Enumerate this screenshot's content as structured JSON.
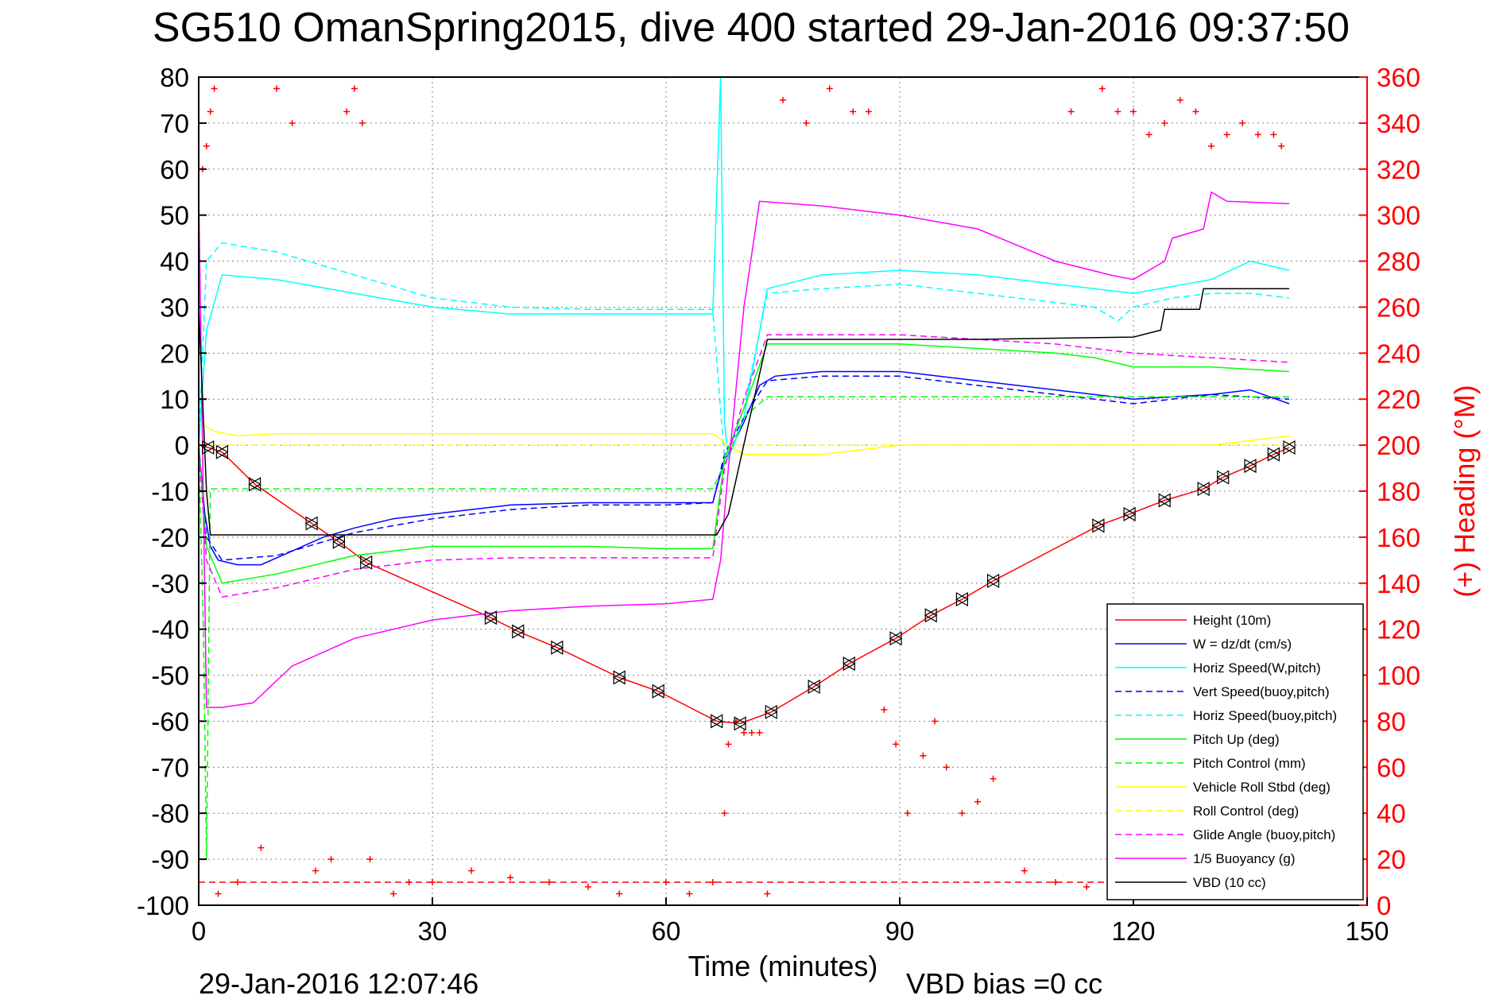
{
  "chart_data": {
    "type": "line",
    "title": "SG510 OmanSpring2015, dive 400 started 29-Jan-2016 09:37:50",
    "xlabel": "Time (minutes)",
    "ylabel_right": "(+) Heading (°M)",
    "xlim": [
      0,
      150
    ],
    "ylim_left": [
      -100,
      80
    ],
    "ylim_right": [
      0,
      360
    ],
    "xticks": [
      "0",
      "30",
      "60",
      "90",
      "120",
      "150"
    ],
    "yticks_left": [
      "80",
      "70",
      "60",
      "50",
      "40",
      "30",
      "20",
      "10",
      "0",
      "-10",
      "-20",
      "-30",
      "-40",
      "-50",
      "-60",
      "-70",
      "-80",
      "-90",
      "-100"
    ],
    "yticks_right": [
      "360",
      "340",
      "320",
      "300",
      "280",
      "260",
      "240",
      "220",
      "200",
      "180",
      "160",
      "140",
      "120",
      "100",
      "80",
      "60",
      "40",
      "20",
      "0"
    ],
    "grid": true,
    "legend_position": "bottom-right",
    "footer_left": "29-Jan-2016 12:07:46",
    "footer_right": "VBD bias =0 cc",
    "colors": {
      "height": "#ff0000",
      "w": "#0000ff",
      "horiz": "#00ffff",
      "pitch": "#00ff00",
      "roll": "#ffff00",
      "glide": "#ff00ff",
      "buoy": "#ff00ff",
      "vbd": "#000000",
      "heading": "#ff0000"
    },
    "series": [
      {
        "name": "Height (10m)",
        "color": "#ff0000",
        "style": "solid",
        "x": [
          0,
          1.2,
          3,
          7.2,
          14.5,
          18,
          21.5,
          37.5,
          41,
          46,
          54,
          59,
          66.5,
          69.5,
          73.5,
          79,
          83.5,
          89.5,
          94,
          98,
          102,
          115.5,
          119.5,
          124,
          129,
          131.5,
          135,
          138,
          140
        ],
        "y": [
          0,
          -0.5,
          -1.5,
          -8.5,
          -17,
          -21,
          -25.5,
          -37.5,
          -40.5,
          -44,
          -50.5,
          -53.5,
          -60,
          -60.5,
          -58,
          -52.5,
          -47.5,
          -42,
          -37,
          -33.5,
          -29.5,
          -17.5,
          -15,
          -12,
          -9.5,
          -7,
          -4.5,
          -2,
          -0.5
        ]
      },
      {
        "name": "W = dz/dt (cm/s)",
        "color": "#0000ff",
        "style": "solid",
        "x": [
          0,
          0.8,
          1.5,
          2.5,
          5,
          8,
          12,
          16,
          20,
          25,
          30,
          40,
          50,
          60,
          66,
          67.5,
          68,
          70,
          72,
          74,
          80,
          90,
          100,
          110,
          120,
          130,
          135,
          140
        ],
        "y": [
          0,
          -15,
          -22,
          -25,
          -26,
          -26,
          -23,
          -20,
          -18,
          -16,
          -15,
          -13,
          -12.5,
          -12.5,
          -12.5,
          -3,
          -2,
          5,
          13,
          15,
          16,
          16,
          14,
          12,
          10,
          11,
          12,
          9
        ]
      },
      {
        "name": "Horiz Speed(W,pitch)",
        "color": "#00ffff",
        "style": "solid",
        "x": [
          0,
          1,
          3,
          10,
          20,
          30,
          40,
          50,
          60,
          66,
          67,
          67.5,
          68,
          70,
          73,
          80,
          90,
          100,
          110,
          120,
          130,
          135,
          140
        ],
        "y": [
          0,
          25,
          37,
          36,
          33,
          30,
          28.5,
          28.5,
          28.5,
          28.5,
          80,
          5,
          -3,
          6,
          34,
          37,
          38,
          37,
          35,
          33,
          36,
          40,
          38
        ]
      },
      {
        "name": "Vert Speed(buoy,pitch)",
        "color": "#0000ff",
        "style": "dashed",
        "x": [
          0,
          1,
          3,
          10,
          20,
          30,
          40,
          50,
          60,
          66,
          67.5,
          70,
          73,
          80,
          90,
          100,
          110,
          120,
          130,
          140
        ],
        "y": [
          0,
          -20,
          -25,
          -24,
          -19,
          -16,
          -14,
          -13,
          -13,
          -12.5,
          -2,
          6,
          14,
          15,
          15,
          13,
          11,
          9,
          11,
          10
        ]
      },
      {
        "name": "Horiz Speed(buoy,pitch)",
        "color": "#00ffff",
        "style": "dashed",
        "x": [
          0,
          1,
          3,
          10,
          20,
          30,
          40,
          50,
          60,
          66,
          67.5,
          70,
          73,
          80,
          90,
          100,
          110,
          115,
          118,
          120,
          125,
          130,
          135,
          140
        ],
        "y": [
          0,
          40,
          44,
          42,
          37,
          32,
          30,
          29.5,
          29.5,
          29.5,
          -3,
          8,
          33,
          34,
          35,
          33,
          31,
          30,
          27,
          30,
          32,
          33,
          33,
          32
        ]
      },
      {
        "name": "Pitch Up (deg)",
        "color": "#00ff00",
        "style": "solid",
        "x": [
          0,
          1,
          3,
          10,
          20,
          30,
          40,
          50,
          60,
          66,
          67.5,
          70,
          73,
          80,
          90,
          100,
          110,
          115,
          120,
          130,
          140
        ],
        "y": [
          0,
          -22,
          -30,
          -28,
          -24,
          -22,
          -22,
          -22,
          -22.5,
          -22.5,
          -3,
          8,
          22,
          22,
          22,
          21,
          20,
          19,
          17,
          17,
          16
        ]
      },
      {
        "name": "Pitch Control (mm)",
        "color": "#00ff00",
        "style": "dashed",
        "x": [
          0,
          0.6,
          1,
          1.5,
          3,
          66,
          67.5,
          70,
          73,
          140
        ],
        "y": [
          0,
          -40,
          -90,
          -9.5,
          -9.5,
          -9.5,
          -4,
          6,
          10.5,
          10.5
        ]
      },
      {
        "name": "Vehicle Roll Stbd (deg)",
        "color": "#ffff00",
        "style": "solid",
        "x": [
          0,
          2,
          5,
          10,
          20,
          30,
          40,
          50,
          60,
          66,
          68,
          70,
          75,
          80,
          90,
          100,
          110,
          120,
          130,
          140
        ],
        "y": [
          5,
          3,
          2,
          2.5,
          2.5,
          2.5,
          2.5,
          2.5,
          2.5,
          2.5,
          0,
          -2,
          -2,
          -2,
          0,
          0,
          0,
          0,
          0,
          2
        ]
      },
      {
        "name": "Roll Control (deg)",
        "color": "#ffff00",
        "style": "dashed",
        "x": [
          0,
          2,
          66,
          68,
          140
        ],
        "y": [
          0,
          0,
          0,
          0,
          0
        ]
      },
      {
        "name": "Glide Angle (buoy,pitch)",
        "color": "#ff00ff",
        "style": "dashed",
        "x": [
          0,
          1,
          3,
          10,
          20,
          30,
          40,
          50,
          60,
          66,
          67.5,
          70,
          73,
          80,
          90,
          100,
          110,
          120,
          130,
          140
        ],
        "y": [
          0,
          -25,
          -33,
          -31,
          -27,
          -25,
          -24.5,
          -24.5,
          -24.5,
          -24.5,
          -5,
          10,
          24,
          24,
          24,
          23,
          22,
          20,
          19,
          18
        ]
      },
      {
        "name": "1/5 Buoyancy (g)",
        "color": "#ff00ff",
        "style": "solid",
        "x": [
          0,
          1,
          3,
          7,
          12,
          20,
          30,
          40,
          50,
          60,
          66,
          67,
          68,
          70,
          72,
          80,
          90,
          100,
          110,
          117,
          120,
          124,
          125,
          129,
          130,
          132,
          140
        ],
        "y": [
          55,
          -57,
          -57,
          -56,
          -48,
          -42,
          -38,
          -36,
          -35,
          -34.5,
          -33.5,
          -25,
          -5,
          30,
          53,
          52,
          50,
          47,
          40,
          37,
          36,
          40,
          45,
          47,
          55,
          53,
          52.5
        ]
      },
      {
        "name": "VBD (10 cc)",
        "color": "#000000",
        "style": "solid",
        "x": [
          0,
          1,
          1.5,
          66.5,
          68,
          73,
          80,
          100,
          120,
          123.5,
          124,
          128.5,
          129,
          140
        ],
        "y": [
          30,
          -10,
          -19.5,
          -19.5,
          -15,
          23,
          23,
          23,
          23.5,
          25,
          29.5,
          29.5,
          34,
          34
        ]
      },
      {
        "name": "Heading",
        "color": "#ff0000",
        "style": "markers",
        "x": [
          0.5,
          1,
          1.5,
          2,
          2.5,
          5,
          8,
          10,
          12,
          15,
          17,
          19,
          20,
          21,
          22,
          25,
          27,
          30,
          35,
          40,
          45,
          50,
          54,
          60,
          63,
          66,
          67.5,
          68,
          69,
          70,
          71,
          72,
          73,
          75,
          78,
          81,
          84,
          86,
          88,
          89.5,
          91,
          93,
          94.5,
          96,
          98,
          100,
          102,
          106,
          110,
          112,
          114,
          116,
          118,
          120,
          122,
          124,
          126,
          128,
          130,
          132,
          134,
          136,
          138,
          139
        ],
        "y": [
          320,
          330,
          345,
          355,
          5,
          10,
          25,
          355,
          340,
          15,
          20,
          345,
          355,
          340,
          20,
          5,
          10,
          10,
          15,
          12,
          10,
          8,
          5,
          10,
          5,
          10,
          40,
          70,
          80,
          75,
          75,
          75,
          5,
          350,
          340,
          355,
          345,
          345,
          85,
          70,
          40,
          65,
          80,
          60,
          40,
          45,
          55,
          15,
          10,
          345,
          8,
          355,
          345,
          345,
          335,
          340,
          350,
          345,
          330,
          335,
          340,
          335,
          335,
          330
        ]
      }
    ],
    "markers": {
      "name": "Height (10m)",
      "x": [
        1.2,
        3,
        7.2,
        14.5,
        18,
        21.5,
        37.5,
        41,
        46,
        54,
        59,
        66.5,
        69.5,
        73.5,
        79,
        83.5,
        89.5,
        94,
        98,
        102,
        115.5,
        119.5,
        124,
        129,
        131.5,
        135,
        138,
        140
      ],
      "y": [
        -0.5,
        -1.5,
        -8.5,
        -17,
        -21,
        -25.5,
        -37.5,
        -40.5,
        -44,
        -50.5,
        -53.5,
        -60,
        -60.5,
        -58,
        -52.5,
        -47.5,
        -42,
        -37,
        -33.5,
        -29.5,
        -17.5,
        -15,
        -12,
        -9.5,
        -7,
        -4.5,
        -2,
        -0.5
      ]
    },
    "reference_line": {
      "axis": "right",
      "value": 10,
      "color": "#ff0000",
      "style": "dashed"
    }
  }
}
